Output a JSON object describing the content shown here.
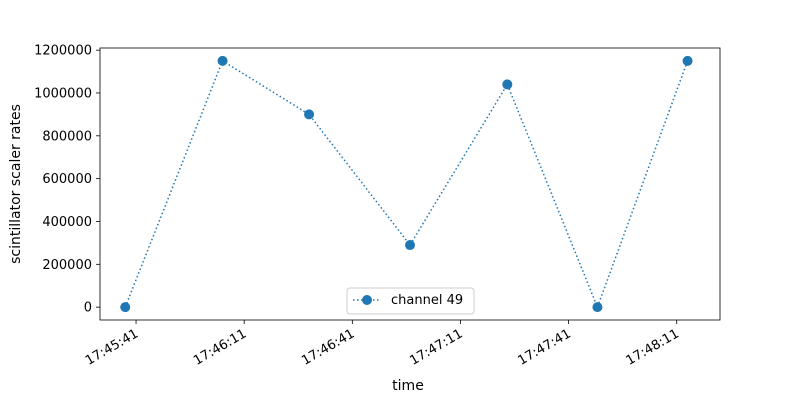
{
  "chart_data": {
    "type": "line",
    "title": "",
    "xlabel": "time",
    "ylabel": "scintillator scaler rates",
    "x_tick_labels": [
      "17:45:41",
      "17:46:11",
      "17:46:41",
      "17:47:11",
      "17:47:41",
      "17:48:11"
    ],
    "x_ticks_seconds": [
      0,
      30,
      60,
      90,
      120,
      150
    ],
    "x_range_seconds": [
      -10,
      162
    ],
    "y_tick_labels": [
      "0",
      "200000",
      "400000",
      "600000",
      "800000",
      "1000000",
      "1200000"
    ],
    "y_ticks": [
      0,
      200000,
      400000,
      600000,
      800000,
      1000000,
      1200000
    ],
    "ylim": [
      -60000,
      1210000
    ],
    "grid": false,
    "legend_placement": "lower center",
    "series": [
      {
        "name": "channel 49",
        "color": "#1f77b4",
        "line_style": "dotted",
        "marker": "circle",
        "x_seconds": [
          -3,
          24,
          48,
          76,
          103,
          128,
          153
        ],
        "values": [
          0,
          1150000,
          900000,
          290000,
          1040000,
          0,
          1150000
        ]
      }
    ]
  }
}
